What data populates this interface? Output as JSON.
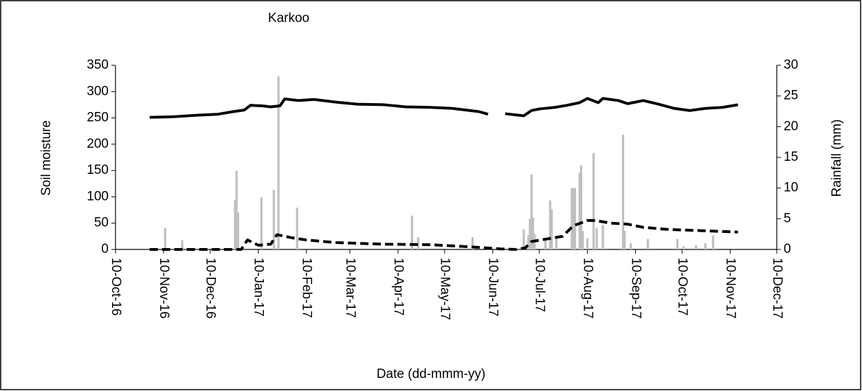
{
  "chart_data": {
    "type": "combo",
    "title": "Karkoo",
    "xlabel": "Date (dd-mmm-yy)",
    "ylabel": "Soil moisture",
    "y2label": "Rainfall (mm)",
    "xlim": [
      "2016-10-10",
      "2017-12-10"
    ],
    "xticks": [
      {
        "value": "2016-10-10",
        "label": "10-Oct-16"
      },
      {
        "value": "2016-11-10",
        "label": "10-Nov-16"
      },
      {
        "value": "2016-12-10",
        "label": "10-Dec-16"
      },
      {
        "value": "2017-01-10",
        "label": "10-Jan-17"
      },
      {
        "value": "2017-02-10",
        "label": "10-Feb-17"
      },
      {
        "value": "2017-03-10",
        "label": "10-Mar-17"
      },
      {
        "value": "2017-04-10",
        "label": "10-Apr-17"
      },
      {
        "value": "2017-05-10",
        "label": "10-May-17"
      },
      {
        "value": "2017-06-10",
        "label": "10-Jun-17"
      },
      {
        "value": "2017-07-10",
        "label": "10-Jul-17"
      },
      {
        "value": "2017-08-10",
        "label": "10-Aug-17"
      },
      {
        "value": "2017-09-10",
        "label": "10-Sep-17"
      },
      {
        "value": "2017-10-10",
        "label": "10-Oct-17"
      },
      {
        "value": "2017-11-10",
        "label": "10-Nov-17"
      },
      {
        "value": "2017-12-10",
        "label": "10-Dec-17"
      }
    ],
    "ylim": [
      0,
      350
    ],
    "yticks": [
      0,
      50,
      100,
      150,
      200,
      250,
      300,
      350
    ],
    "y2lim": [
      0,
      30
    ],
    "y2ticks": [
      0,
      5,
      10,
      15,
      20,
      25,
      30
    ],
    "series": [
      {
        "type": "bar",
        "axis": "y2",
        "color": "#bfbfbf",
        "x": [
          "2016-11-11",
          "2016-11-22",
          "2016-12-26",
          "2016-12-27",
          "2016-12-28",
          "2017-01-12",
          "2017-01-20",
          "2017-01-23",
          "2017-02-04",
          "2017-04-19",
          "2017-04-23",
          "2017-05-28",
          "2017-06-30",
          "2017-07-03",
          "2017-07-04",
          "2017-07-05",
          "2017-07-06",
          "2017-07-07",
          "2017-07-14",
          "2017-07-17",
          "2017-07-18",
          "2017-07-21",
          "2017-07-31",
          "2017-08-01",
          "2017-08-02",
          "2017-08-05",
          "2017-08-06",
          "2017-08-07",
          "2017-08-10",
          "2017-08-14",
          "2017-08-16",
          "2017-08-20",
          "2017-09-02",
          "2017-09-03",
          "2017-09-07",
          "2017-09-18",
          "2017-10-07",
          "2017-10-11",
          "2017-10-19",
          "2017-10-25",
          "2017-10-30"
        ],
        "values": [
          3.5,
          1.5,
          8,
          12.8,
          6,
          8.5,
          9.7,
          28.2,
          6.8,
          5.5,
          2,
          2,
          3.3,
          2.3,
          5,
          12.2,
          5.2,
          2.5,
          1.5,
          8,
          6.5,
          2,
          10,
          10,
          10,
          12.5,
          13.7,
          3,
          1.8,
          15.7,
          3.5,
          4,
          18.7,
          3,
          1,
          1.7,
          1.7,
          0.5,
          0.7,
          1,
          2.3
        ]
      },
      {
        "type": "line",
        "color": "#000000",
        "dash": false,
        "x": [
          "2016-11-01",
          "2016-11-15",
          "2016-12-01",
          "2016-12-15",
          "2016-12-25",
          "2017-01-01",
          "2017-01-05",
          "2017-01-12",
          "2017-01-18",
          "2017-01-24",
          "2017-01-27",
          "2017-02-05",
          "2017-02-15",
          "2017-03-01",
          "2017-03-15",
          "2017-04-01",
          "2017-04-15",
          "2017-05-01",
          "2017-05-15",
          "2017-06-01",
          "2017-06-07",
          "2017-06-12",
          "2017-06-18",
          "2017-06-30",
          "2017-07-05",
          "2017-07-10",
          "2017-07-20",
          "2017-07-28",
          "2017-08-05",
          "2017-08-10",
          "2017-08-17",
          "2017-08-20",
          "2017-08-30",
          "2017-09-05",
          "2017-09-15",
          "2017-09-25",
          "2017-10-05",
          "2017-10-15",
          "2017-10-25",
          "2017-11-05",
          "2017-11-15"
        ],
        "values": [
          251,
          252,
          255,
          257,
          262,
          265,
          274,
          273,
          271,
          273,
          286,
          283,
          285,
          280,
          276,
          275,
          271,
          270,
          268,
          262,
          257,
          null,
          258,
          254,
          264,
          267,
          270,
          274,
          279,
          287,
          279,
          287,
          283,
          277,
          283,
          276,
          268,
          264,
          268,
          270,
          275
        ]
      },
      {
        "type": "line",
        "color": "#000000",
        "dash": true,
        "x": [
          "2016-11-01",
          "2016-12-30",
          "2017-01-03",
          "2017-01-10",
          "2017-01-18",
          "2017-01-22",
          "2017-02-01",
          "2017-02-10",
          "2017-03-01",
          "2017-04-01",
          "2017-05-01",
          "2017-06-01",
          "2017-06-15",
          "2017-06-25",
          "2017-07-01",
          "2017-07-05",
          "2017-07-15",
          "2017-07-25",
          "2017-08-01",
          "2017-08-10",
          "2017-08-15",
          "2017-08-25",
          "2017-09-05",
          "2017-09-15",
          "2017-10-01",
          "2017-10-20",
          "2017-11-15"
        ],
        "values": [
          0,
          0,
          18,
          8,
          10,
          28,
          22,
          18,
          13,
          10,
          9,
          4,
          1,
          0,
          3,
          15,
          20,
          25,
          45,
          55,
          55,
          50,
          48,
          42,
          38,
          36,
          33
        ]
      }
    ]
  }
}
